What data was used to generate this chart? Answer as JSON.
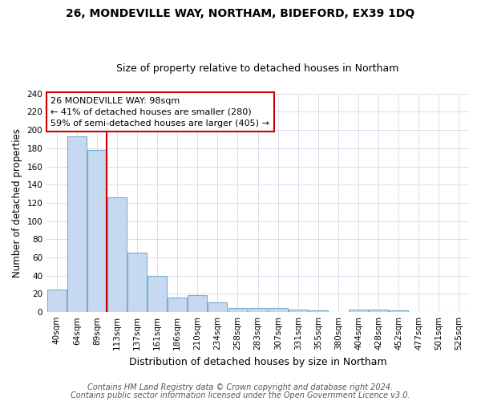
{
  "title": "26, MONDEVILLE WAY, NORTHAM, BIDEFORD, EX39 1DQ",
  "subtitle": "Size of property relative to detached houses in Northam",
  "xlabel": "Distribution of detached houses by size in Northam",
  "ylabel": "Number of detached properties",
  "footnote1": "Contains HM Land Registry data © Crown copyright and database right 2024.",
  "footnote2": "Contains public sector information licensed under the Open Government Licence v3.0.",
  "categories": [
    "40sqm",
    "64sqm",
    "89sqm",
    "113sqm",
    "137sqm",
    "161sqm",
    "186sqm",
    "210sqm",
    "234sqm",
    "258sqm",
    "283sqm",
    "307sqm",
    "331sqm",
    "355sqm",
    "380sqm",
    "404sqm",
    "428sqm",
    "452sqm",
    "477sqm",
    "501sqm",
    "525sqm"
  ],
  "values": [
    25,
    193,
    178,
    126,
    65,
    40,
    16,
    19,
    11,
    5,
    5,
    5,
    3,
    2,
    0,
    3,
    3,
    2,
    0,
    0,
    0
  ],
  "bar_color": "#c6d9f0",
  "bar_edge_color": "#7aadce",
  "red_line_x": 2.5,
  "annotation_line1": "26 MONDEVILLE WAY: 98sqm",
  "annotation_line2": "← 41% of detached houses are smaller (280)",
  "annotation_line3": "59% of semi-detached houses are larger (405) →",
  "annotation_box_color": "#ffffff",
  "annotation_box_edge_color": "#cc0000",
  "red_line_color": "#cc0000",
  "ylim": [
    0,
    240
  ],
  "yticks": [
    0,
    20,
    40,
    60,
    80,
    100,
    120,
    140,
    160,
    180,
    200,
    220,
    240
  ],
  "grid_color": "#d0d8e8",
  "bg_color": "#ffffff",
  "title_fontsize": 10,
  "subtitle_fontsize": 9,
  "xlabel_fontsize": 9,
  "ylabel_fontsize": 8.5,
  "tick_fontsize": 7.5,
  "annotation_fontsize": 8,
  "footnote_fontsize": 7
}
